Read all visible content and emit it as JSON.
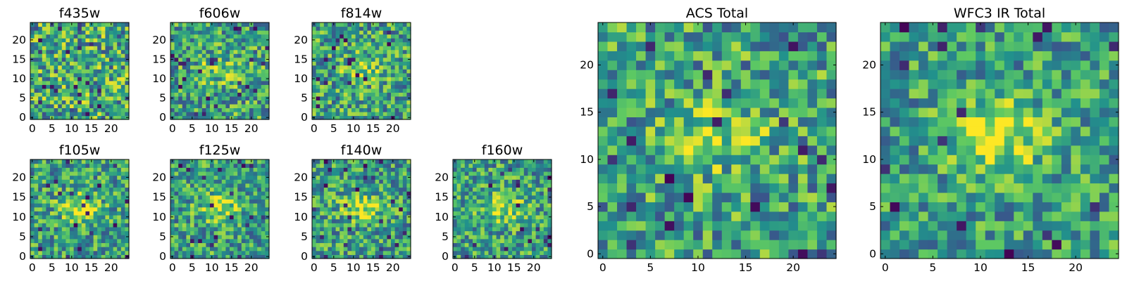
{
  "figure": {
    "colormap": "viridis",
    "colors": [
      "#440154",
      "#3b528b",
      "#21918c",
      "#5ec962",
      "#fde725"
    ]
  },
  "chart_data": [
    {
      "type": "heatmap",
      "title": "f435w",
      "grid_size": 25,
      "signal": 0.0,
      "seed": 11,
      "xticks": [
        0,
        5,
        10,
        15,
        20
      ],
      "yticks": [
        0,
        5,
        10,
        15,
        20
      ],
      "xlim": [
        0,
        24
      ],
      "ylim": [
        0,
        24
      ]
    },
    {
      "type": "heatmap",
      "title": "f606w",
      "grid_size": 25,
      "signal": 0.45,
      "seed": 23,
      "xticks": [
        0,
        5,
        10,
        15,
        20
      ],
      "yticks": [
        0,
        5,
        10,
        15,
        20
      ],
      "xlim": [
        0,
        24
      ],
      "ylim": [
        0,
        24
      ]
    },
    {
      "type": "heatmap",
      "title": "f814w",
      "grid_size": 25,
      "signal": 0.45,
      "seed": 37,
      "xticks": [
        0,
        5,
        10,
        15,
        20
      ],
      "yticks": [
        0,
        5,
        10,
        15,
        20
      ],
      "xlim": [
        0,
        24
      ],
      "ylim": [
        0,
        24
      ]
    },
    {
      "type": "heatmap",
      "title": "f105w",
      "grid_size": 25,
      "signal": 0.7,
      "seed": 41,
      "xticks": [
        0,
        5,
        10,
        15,
        20
      ],
      "yticks": [
        0,
        5,
        10,
        15,
        20
      ],
      "xlim": [
        0,
        24
      ],
      "ylim": [
        0,
        24
      ]
    },
    {
      "type": "heatmap",
      "title": "f125w",
      "grid_size": 25,
      "signal": 0.7,
      "seed": 53,
      "xticks": [
        0,
        5,
        10,
        15,
        20
      ],
      "yticks": [
        0,
        5,
        10,
        15,
        20
      ],
      "xlim": [
        0,
        24
      ],
      "ylim": [
        0,
        24
      ]
    },
    {
      "type": "heatmap",
      "title": "f140w",
      "grid_size": 25,
      "signal": 0.7,
      "seed": 67,
      "xticks": [
        0,
        5,
        10,
        15,
        20
      ],
      "yticks": [
        0,
        5,
        10,
        15,
        20
      ],
      "xlim": [
        0,
        24
      ],
      "ylim": [
        0,
        24
      ]
    },
    {
      "type": "heatmap",
      "title": "f160w",
      "grid_size": 25,
      "signal": 0.7,
      "seed": 79,
      "xticks": [
        0,
        5,
        10,
        15,
        20
      ],
      "yticks": [
        0,
        5,
        10,
        15,
        20
      ],
      "xlim": [
        0,
        24
      ],
      "ylim": [
        0,
        24
      ]
    },
    {
      "type": "heatmap",
      "title": "ACS Total",
      "grid_size": 25,
      "signal": 0.55,
      "seed": 83,
      "xticks": [
        0,
        5,
        10,
        15,
        20
      ],
      "yticks": [
        0,
        5,
        10,
        15,
        20
      ],
      "xlim": [
        0,
        24
      ],
      "ylim": [
        0,
        24
      ]
    },
    {
      "type": "heatmap",
      "title": "WFC3 IR Total",
      "grid_size": 25,
      "signal": 0.9,
      "seed": 97,
      "xticks": [
        0,
        5,
        10,
        15,
        20
      ],
      "yticks": [
        0,
        5,
        10,
        15,
        20
      ],
      "xlim": [
        0,
        24
      ],
      "ylim": [
        0,
        24
      ]
    }
  ]
}
